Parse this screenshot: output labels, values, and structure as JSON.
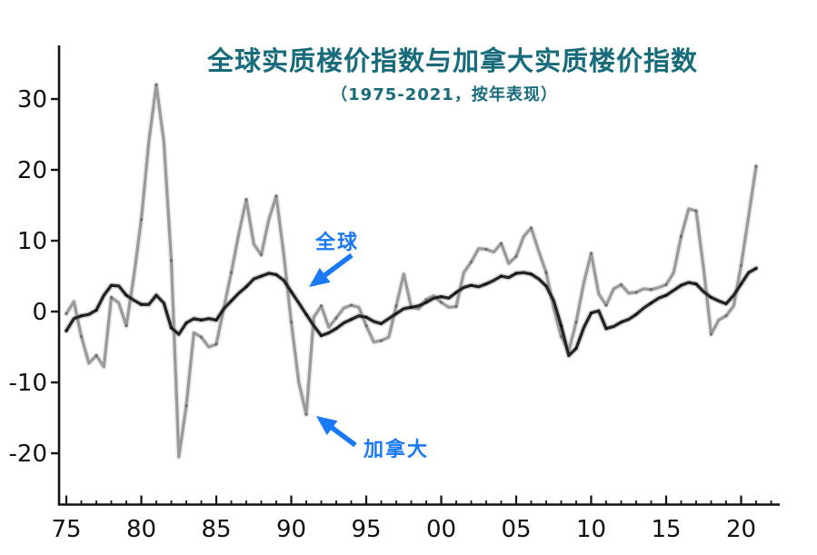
{
  "page": {
    "background": "#ffffff"
  },
  "chart_data": {
    "type": "line",
    "title": "全球实质楼价指数与加拿大实质楼价指数",
    "subtitle": "（1975-2021，按年表现）",
    "title_color": "#176b7a",
    "axis_color": "#111111",
    "grid": false,
    "x_start": 1975,
    "x_step": 0.5,
    "x_range": [
      1975,
      2021
    ],
    "ylim": [
      -25,
      33
    ],
    "y_ticks": [
      30,
      20,
      10,
      0,
      -10,
      -20
    ],
    "x_ticks": [
      {
        "year": 1975,
        "label": "75"
      },
      {
        "year": 1980,
        "label": "80"
      },
      {
        "year": 1985,
        "label": "85"
      },
      {
        "year": 1990,
        "label": "90"
      },
      {
        "year": 1995,
        "label": "95"
      },
      {
        "year": 2000,
        "label": "00"
      },
      {
        "year": 2005,
        "label": "05"
      },
      {
        "year": 2010,
        "label": "10"
      },
      {
        "year": 2015,
        "label": "15"
      },
      {
        "year": 2020,
        "label": "20"
      }
    ],
    "series": [
      {
        "name": "加拿大",
        "color": "#9a9a9a",
        "halo_color": "#c9c9c9",
        "marker_color": "#3f3f3f",
        "values": [
          -0.3,
          1.4,
          -3.5,
          -7.3,
          -6.2,
          -7.8,
          2.0,
          1.2,
          -2.0,
          5.0,
          13.0,
          24.0,
          32.0,
          24.0,
          7.2,
          -20.5,
          -13.3,
          -3.0,
          -3.6,
          -5.0,
          -4.6,
          0.5,
          5.5,
          11.0,
          15.8,
          9.5,
          8.0,
          13.0,
          16.3,
          8.0,
          -1.5,
          -10.0,
          -14.5,
          -0.8,
          0.8,
          -2.2,
          -0.9,
          0.5,
          0.9,
          0.6,
          -2.0,
          -4.3,
          -4.1,
          -3.6,
          0.8,
          5.3,
          0.6,
          0.4,
          1.7,
          2.2,
          1.3,
          0.6,
          0.7,
          5.5,
          7.0,
          8.9,
          8.8,
          8.4,
          9.6,
          6.8,
          7.8,
          10.6,
          11.8,
          8.5,
          5.5,
          0.5,
          -3.5,
          -5.6,
          -1.5,
          4.0,
          8.2,
          2.5,
          0.9,
          3.2,
          3.8,
          2.6,
          2.7,
          3.2,
          3.1,
          3.4,
          3.8,
          5.5,
          10.6,
          14.5,
          14.2,
          6.0,
          -3.2,
          -1.2,
          -0.6,
          0.8,
          6.5,
          13.5,
          20.5
        ]
      },
      {
        "name": "全球",
        "color": "#242424",
        "halo_color": "#8a8a8a",
        "marker_color": "#000000",
        "values": [
          -2.7,
          -1.0,
          -0.6,
          -0.4,
          0.2,
          2.3,
          3.7,
          3.6,
          2.3,
          1.6,
          1.0,
          1.0,
          2.3,
          1.2,
          -2.3,
          -3.2,
          -1.6,
          -1.0,
          -1.2,
          -1.0,
          -1.2,
          0.4,
          1.5,
          2.6,
          3.5,
          4.6,
          5.0,
          5.4,
          5.2,
          4.4,
          2.8,
          1.2,
          -0.4,
          -2.0,
          -3.4,
          -3.0,
          -2.4,
          -1.6,
          -1.1,
          -0.6,
          -0.8,
          -1.4,
          -1.7,
          -1.0,
          -0.3,
          0.4,
          0.6,
          0.8,
          1.3,
          1.9,
          2.1,
          1.9,
          2.7,
          3.4,
          3.7,
          3.5,
          3.9,
          4.4,
          5.0,
          4.8,
          5.4,
          5.5,
          5.3,
          4.6,
          3.6,
          1.5,
          -2.0,
          -6.2,
          -5.2,
          -2.3,
          -0.2,
          0.1,
          -2.4,
          -2.1,
          -1.5,
          -1.1,
          -0.4,
          0.5,
          1.2,
          1.9,
          2.3,
          3.0,
          3.7,
          4.1,
          3.9,
          2.8,
          2.0,
          1.5,
          1.1,
          2.3,
          3.9,
          5.5,
          6.1
        ]
      }
    ],
    "annotations": [
      {
        "id": "global",
        "label": "全球",
        "color": "#1a79f5"
      },
      {
        "id": "canada",
        "label": "加拿大",
        "color": "#1a79f5"
      }
    ]
  }
}
